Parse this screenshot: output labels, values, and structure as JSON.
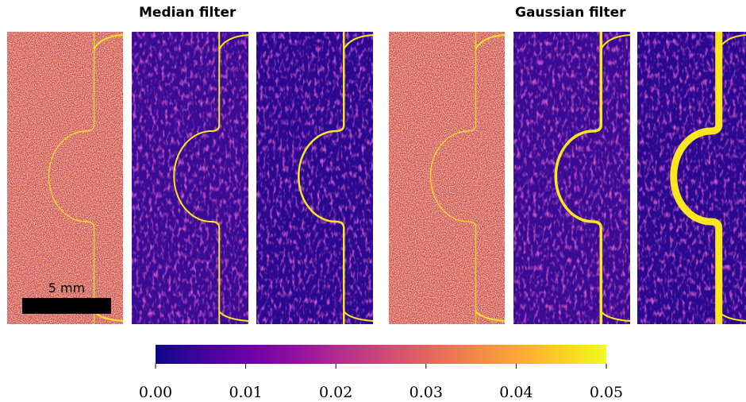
{
  "panels": [
    {
      "title": "Median filter"
    },
    {
      "title": "Gaussian filter"
    }
  ],
  "scale_bar": {
    "label": "5 mm"
  },
  "colorbar": {
    "colormap": "plasma",
    "lim": [
      0,
      0.05
    ],
    "ticks": [
      {
        "value": 0,
        "label": "0.00"
      },
      {
        "value": 0.01,
        "label": "0.01"
      },
      {
        "value": 0.02,
        "label": "0.02"
      },
      {
        "value": 0.03,
        "label": "0.03"
      },
      {
        "value": 0.04,
        "label": "0.04"
      },
      {
        "value": 0.05,
        "label": "0.05"
      }
    ]
  }
}
